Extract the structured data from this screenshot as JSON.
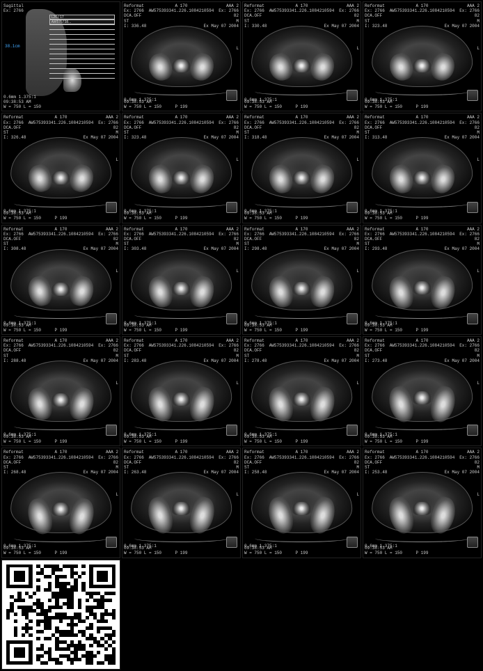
{
  "common": {
    "topLeft1": "Reformat",
    "topLeft2": "Ex: 2766",
    "topLeft3": "DCA.OFF",
    "topLeft4": "ST",
    "topCenter1": "A 170",
    "topCenter2": "AW575393341.226.1084210594",
    "topRight1": "AAA 2",
    "topRight2": "Ex: 2766",
    "topRight3": "82",
    "topRight4": "M",
    "dateText": "Ex May 07 2004",
    "rightMid": "L",
    "bottomLeft1": "0.6mm 1.375:1",
    "bottomLeft2": "09:38:53 AM",
    "bottomLeft3": "W = 750 L = 150",
    "bottomCenter": "P 199",
    "bottomRight": "12"
  },
  "sagittal": {
    "tl1": "Sagittal",
    "tl2": "Ex: 2766",
    "measure": "38.1cm",
    "row1": "L26 / 17",
    "row2": "AW575738...",
    "rows": [
      "",
      "",
      "",
      "",
      "",
      "",
      "",
      "",
      "",
      "",
      "",
      ""
    ]
  },
  "slices": [
    {
      "loc": "I: 336.48"
    },
    {
      "loc": "I: 330.48"
    },
    {
      "loc": "I: 323.48"
    },
    {
      "loc": "I: 326.48"
    },
    {
      "loc": "I: 323.48"
    },
    {
      "loc": "I: 318.48"
    },
    {
      "loc": "I: 313.48"
    },
    {
      "loc": "I: 308.48"
    },
    {
      "loc": "I: 303.48"
    },
    {
      "loc": "I: 298.48"
    },
    {
      "loc": "I: 293.48"
    },
    {
      "loc": "I: 288.48"
    },
    {
      "loc": "I: 283.48"
    },
    {
      "loc": "I: 278.48"
    },
    {
      "loc": "I: 273.48"
    },
    {
      "loc": "I: 268.48"
    },
    {
      "loc": "I: 263.48"
    },
    {
      "loc": "I: 258.48"
    },
    {
      "loc": "I: 253.48"
    }
  ],
  "morph": [
    {
      "by": 45,
      "bh": 45,
      "sp": 55
    },
    {
      "by": 45,
      "bh": 45,
      "sp": 55
    },
    {
      "by": 45,
      "bh": 45,
      "sp": 55
    },
    {
      "by": 45,
      "bh": 45,
      "sp": 55
    },
    {
      "by": 45,
      "bh": 48,
      "sp": 55
    },
    {
      "by": 45,
      "bh": 48,
      "sp": 55
    },
    {
      "by": 45,
      "bh": 48,
      "sp": 55
    },
    {
      "by": 44,
      "bh": 50,
      "sp": 55
    },
    {
      "by": 44,
      "bh": 52,
      "sp": 54
    },
    {
      "by": 44,
      "bh": 52,
      "sp": 54
    },
    {
      "by": 44,
      "bh": 55,
      "sp": 53
    },
    {
      "by": 44,
      "bh": 55,
      "sp": 53
    },
    {
      "by": 43,
      "bh": 58,
      "sp": 52
    },
    {
      "by": 43,
      "bh": 58,
      "sp": 52
    },
    {
      "by": 42,
      "bh": 60,
      "sp": 50
    },
    {
      "by": 42,
      "bh": 60,
      "sp": 50
    },
    {
      "by": 40,
      "bh": 62,
      "sp": 48
    },
    {
      "by": 40,
      "bh": 62,
      "sp": 48
    },
    {
      "by": 40,
      "bh": 62,
      "sp": 48
    }
  ],
  "colors": {
    "bg": "#000000",
    "text": "#cccccc",
    "bone": "#dddddd",
    "tissue": "#444444"
  }
}
